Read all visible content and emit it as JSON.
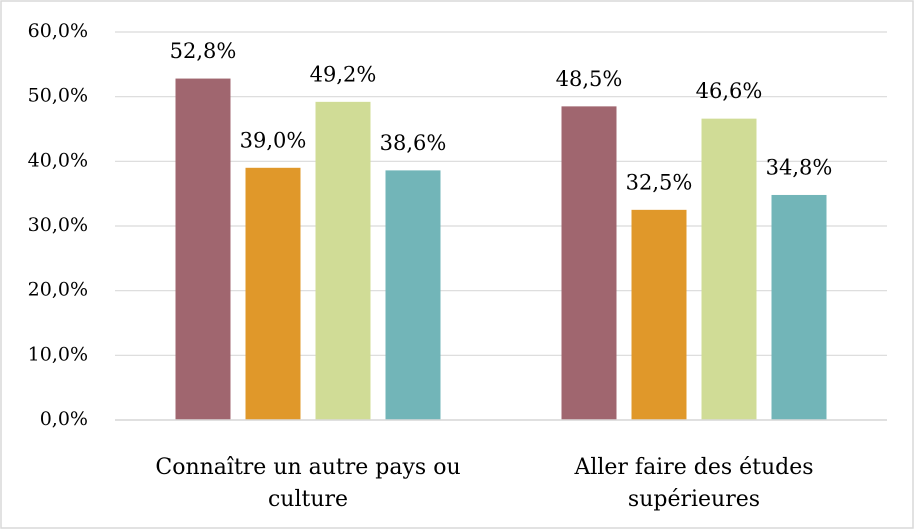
{
  "chart_data": {
    "type": "bar",
    "categories": [
      "Connaître un autre pays ou culture",
      "Aller faire des études supérieures"
    ],
    "series": [
      {
        "color": "#a0666f",
        "values": [
          52.8,
          48.5
        ],
        "value_labels": [
          "52,8%",
          "48,5%"
        ]
      },
      {
        "color": "#e0982a",
        "values": [
          39.0,
          32.5
        ],
        "value_labels": [
          "39,0%",
          "32,5%"
        ]
      },
      {
        "color": "#d0dc96",
        "values": [
          49.2,
          46.6
        ],
        "value_labels": [
          "49,2%",
          "46,6%"
        ]
      },
      {
        "color": "#72b5b8",
        "values": [
          38.6,
          34.8
        ],
        "value_labels": [
          "38,6%",
          "34,8%"
        ]
      }
    ],
    "ylim": [
      0,
      60
    ],
    "yticks": [
      {
        "value": 0,
        "label": "0,0%"
      },
      {
        "value": 10,
        "label": "10,0%"
      },
      {
        "value": 20,
        "label": "20,0%"
      },
      {
        "value": 30,
        "label": "30,0%"
      },
      {
        "value": 40,
        "label": "40,0%"
      },
      {
        "value": 50,
        "label": "50,0%"
      },
      {
        "value": 60,
        "label": "60,0%"
      }
    ],
    "grid": true
  }
}
